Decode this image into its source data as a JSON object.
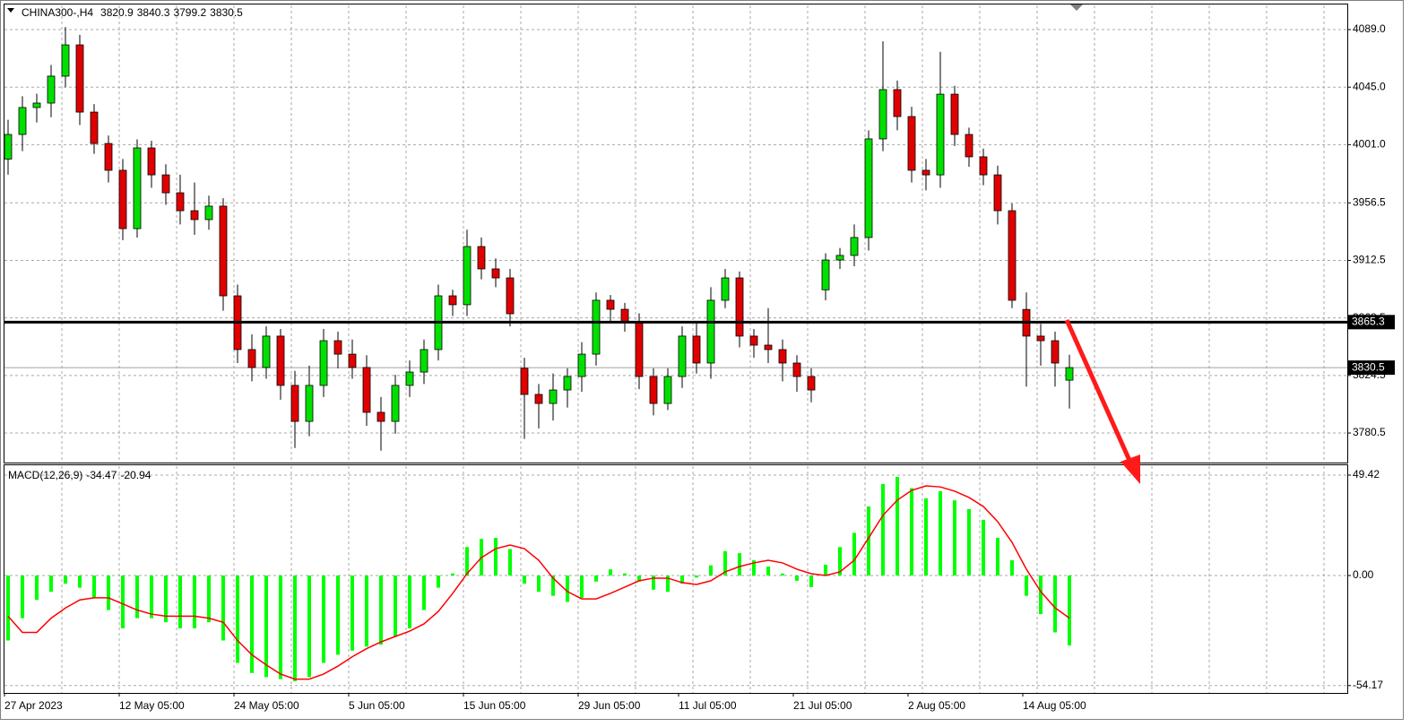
{
  "chart_data": [
    {
      "type": "candlestick",
      "symbol": "CHINA300-,H4",
      "categories": [
        "27 Apr 2023",
        null,
        null,
        null,
        null,
        null,
        null,
        null,
        "12 May 05:00",
        null,
        null,
        null,
        null,
        null,
        null,
        null,
        "24 May 05:00",
        null,
        null,
        null,
        null,
        null,
        null,
        null,
        "5 Jun 05:00",
        null,
        null,
        null,
        null,
        null,
        null,
        null,
        "15 Jun 05:00",
        null,
        null,
        null,
        null,
        null,
        null,
        null,
        "29 Jun 05:00",
        null,
        null,
        null,
        null,
        null,
        null,
        "11 Jul 05:00",
        null,
        null,
        null,
        null,
        null,
        null,
        null,
        "21 Jul 05:00",
        null,
        null,
        null,
        null,
        null,
        null,
        null,
        "2 Aug 05:00",
        null,
        null,
        null,
        null,
        null,
        null,
        null,
        "14 Aug 05:00",
        null,
        null,
        null
      ],
      "open": [
        3990.0,
        4008.8,
        4029.4,
        4032.8,
        4053.4,
        4077.3,
        4025.9,
        4001.9,
        3981.4,
        3936.8,
        3998.5,
        3977.9,
        3964.2,
        3950.5,
        3943.7,
        3954.0,
        3885.4,
        3844.3,
        3830.6,
        3854.6,
        3816.9,
        3789.4,
        3816.9,
        3851.1,
        3840.8,
        3830.6,
        3796.3,
        3789.4,
        3816.9,
        3827.1,
        3844.3,
        3885.4,
        3878.6,
        3923.1,
        3906.0,
        3899.1,
        3830.0,
        3810.0,
        3803.1,
        3813.4,
        3823.7,
        3840.8,
        3882.0,
        3875.1,
        3864.8,
        3823.7,
        3803.1,
        3823.7,
        3854.6,
        3834.0,
        3882.0,
        3899.1,
        3854.6,
        3847.7,
        3844.3,
        3834.0,
        3823.7,
        3890.0,
        3912.8,
        3916.3,
        3930.0,
        4005.4,
        4043.1,
        4022.5,
        3981.4,
        3977.9,
        4039.6,
        4008.8,
        3991.7,
        3977.9,
        3950.5,
        3875.0,
        3854.6,
        3851.1,
        3820.9
      ],
      "high": [
        4020,
        4038,
        4040,
        4062,
        4091,
        4085,
        4032,
        4008,
        3990,
        4005,
        4004,
        3986,
        3978,
        3972,
        3962,
        3960,
        3894,
        3856,
        3862,
        3860,
        3828,
        3832,
        3860,
        3858,
        3852,
        3840,
        3808,
        3825,
        3836,
        3852,
        3894,
        3890,
        3936,
        3930,
        3914,
        3906,
        3838,
        3818,
        3826,
        3830,
        3850,
        3888,
        3886,
        3880,
        3872,
        3830,
        3830,
        3862,
        3866,
        3892,
        3906,
        3904,
        3860,
        3876,
        3852,
        3840,
        3830,
        3918,
        3922,
        3940,
        4012,
        4080,
        4050,
        4030,
        3990,
        4072,
        4046,
        4014,
        3998,
        3985,
        3956,
        3888,
        3864,
        3858,
        3840.3
      ],
      "low": [
        3978,
        3996,
        4018,
        4022,
        4045,
        4016,
        3994,
        3972,
        3928,
        3930,
        3968,
        3955,
        3940,
        3932,
        3936,
        3874,
        3834,
        3820,
        3822,
        3806,
        3769,
        3778,
        3808,
        3830,
        3822,
        3786,
        3767,
        3780,
        3808,
        3818,
        3836,
        3870,
        3870,
        3898,
        3892,
        3862,
        3776,
        3784,
        3790,
        3800,
        3812,
        3832,
        3866,
        3858,
        3814,
        3794,
        3798,
        3815,
        3826,
        3822,
        3876,
        3846,
        3838,
        3834,
        3820,
        3812,
        3804,
        3882,
        3906,
        3908,
        3920,
        3996,
        4012,
        3972,
        3966,
        3968,
        4000,
        3984,
        3970,
        3940,
        3876,
        3816,
        3832,
        3816,
        3799.2
      ],
      "close": [
        4008.8,
        4029.4,
        4032.8,
        4053.4,
        4077.3,
        4025.9,
        4001.9,
        3981.4,
        3936.8,
        3998.5,
        3977.9,
        3964.2,
        3950.5,
        3943.7,
        3954.0,
        3885.4,
        3844.3,
        3830.6,
        3854.6,
        3816.9,
        3789.4,
        3816.9,
        3851.1,
        3840.8,
        3830.6,
        3796.3,
        3789.4,
        3816.9,
        3827.1,
        3844.3,
        3885.4,
        3878.6,
        3923.1,
        3906.0,
        3899.1,
        3871.7,
        3810.0,
        3803.1,
        3813.4,
        3823.7,
        3840.8,
        3882.0,
        3875.1,
        3864.8,
        3823.7,
        3803.1,
        3823.7,
        3854.6,
        3834.0,
        3882.0,
        3899.1,
        3854.6,
        3847.7,
        3844.3,
        3834.0,
        3823.7,
        3813.4,
        3912.8,
        3916.3,
        3930.0,
        4005.4,
        4043.1,
        4022.5,
        3981.4,
        3977.9,
        4039.6,
        4008.8,
        3991.7,
        3977.9,
        3950.5,
        3882.0,
        3854.6,
        3851.1,
        3834.0,
        3830.5
      ],
      "up_color": "#00e000",
      "down_color": "#e00000",
      "ylim": [
        3757.9,
        4108.2
      ],
      "yticks": [
        {
          "value": 4089.0,
          "label": "4089.0"
        },
        {
          "value": 4045.0,
          "label": "4045.0"
        },
        {
          "value": 4001.0,
          "label": "4001.0"
        },
        3956.5,
        3912.5,
        3868.5,
        3824.5,
        3780.5
      ],
      "grid": true,
      "hline": 3865.3,
      "hline_color": "#000000"
    },
    {
      "type": "macd",
      "title": "MACD(12,26,9)",
      "series": [
        {
          "color": "#00ff00",
          "values": [
            -32,
            -21,
            -12,
            -8,
            -4,
            -6,
            -11,
            -17,
            -26,
            -21,
            -21,
            -23,
            -26,
            -26,
            -23,
            -32,
            -43,
            -48,
            -50,
            -51,
            -52,
            -50,
            -43,
            -39,
            -37,
            -35,
            -34,
            -30,
            -26,
            -17,
            -6,
            1,
            14,
            18,
            18.5,
            13,
            -4,
            -8,
            -10,
            -13,
            -11,
            -3,
            3,
            1,
            -3,
            -7,
            -8,
            -4,
            -1,
            5,
            12,
            11,
            7.5,
            4.4,
            1,
            -2.6,
            -5.7,
            5.3,
            14,
            21,
            34,
            45,
            48.5,
            43,
            38,
            41.5,
            37,
            32.7,
            27.4,
            18.5,
            7.5,
            -10,
            -19,
            -28,
            -34.47
          ]
        },
        {
          "color": "#ff0000",
          "values": [
            -20,
            -28,
            -28,
            -21,
            -16,
            -12,
            -11,
            -11,
            -14,
            -17,
            -19,
            -20,
            -20,
            -20,
            -21,
            -23,
            -32,
            -39,
            -44,
            -48.5,
            -51,
            -51,
            -48.5,
            -44.6,
            -40,
            -36,
            -32.7,
            -30,
            -27.4,
            -23.8,
            -17.7,
            -8.8,
            0.9,
            8.8,
            13.2,
            15,
            13.2,
            7.5,
            -1.3,
            -7.9,
            -11.5,
            -11.5,
            -8.8,
            -5.7,
            -2.6,
            -1.3,
            -1.3,
            -3.5,
            -4.4,
            -2.6,
            1.8,
            4.4,
            6.2,
            7.5,
            6.2,
            3.1,
            0.9,
            0,
            1.8,
            7.5,
            18.5,
            29.6,
            37.1,
            41.9,
            44.1,
            43.6,
            41.5,
            38.4,
            34,
            26.5,
            16.3,
            3.1,
            -7.9,
            -15.9,
            -20.94
          ]
        }
      ],
      "ylim": [
        -57.8,
        54.27
      ],
      "yticks": [
        49.42,
        {
          "value": 0,
          "label": "0.00"
        },
        -54.17
      ],
      "grid": true
    }
  ]
}
